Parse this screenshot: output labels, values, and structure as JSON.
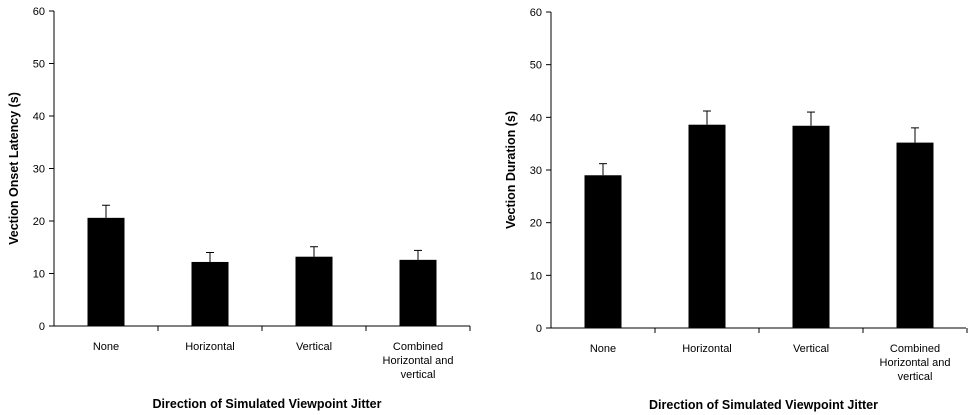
{
  "chart_data": [
    {
      "type": "bar",
      "categories": [
        "None",
        "Horizontal",
        "Vertical",
        "Combined Horizontal and vertical"
      ],
      "category_lines": [
        [
          "None"
        ],
        [
          "Horizontal"
        ],
        [
          "Vertical"
        ],
        [
          "Combined",
          "Horizontal and",
          "vertical"
        ]
      ],
      "values": [
        20.6,
        12.2,
        13.2,
        12.6
      ],
      "errors": [
        2.4,
        1.8,
        1.9,
        1.8
      ],
      "xlabel": "Direction of Simulated Viewpoint Jitter",
      "ylabel": "Vection Onset Latency (s)",
      "ylim": [
        0,
        60
      ],
      "yticks": [
        0,
        10,
        20,
        30,
        40,
        50,
        60
      ],
      "grid": false,
      "bar_color": "#000000"
    },
    {
      "type": "bar",
      "categories": [
        "None",
        "Horizontal",
        "Vertical",
        "Combined Horizontal and vertical"
      ],
      "category_lines": [
        [
          "None"
        ],
        [
          "Horizontal"
        ],
        [
          "Vertical"
        ],
        [
          "Combined",
          "Horizontal and",
          "vertical"
        ]
      ],
      "values": [
        29.0,
        38.6,
        38.4,
        35.2
      ],
      "errors": [
        2.2,
        2.6,
        2.6,
        2.8
      ],
      "xlabel": "Direction of Simulated Viewpoint Jitter",
      "ylabel": "Vection Duration (s)",
      "ylim": [
        0,
        60
      ],
      "yticks": [
        0,
        10,
        20,
        30,
        40,
        50,
        60
      ],
      "grid": false,
      "bar_color": "#000000"
    }
  ]
}
